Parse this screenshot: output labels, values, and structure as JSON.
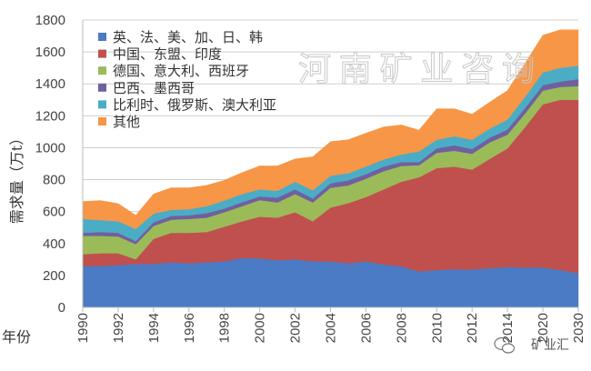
{
  "chart_data": {
    "type": "area",
    "stacked": true,
    "title": "",
    "xlabel": "年份",
    "ylabel": "需求量（万t）",
    "ylim": [
      0,
      1800
    ],
    "yticks": [
      0,
      200,
      400,
      600,
      800,
      1000,
      1200,
      1400,
      1600,
      1800
    ],
    "grid": true,
    "legend_position": "top-left",
    "categories": [
      "1990",
      "1991",
      "1992",
      "1993",
      "1994",
      "1995",
      "1996",
      "1997",
      "1998",
      "1999",
      "2000",
      "2001",
      "2002",
      "2003",
      "2004",
      "2005",
      "2006",
      "2007",
      "2008",
      "2009",
      "2010",
      "2011",
      "2012",
      "2013",
      "2014",
      "",
      "2020",
      "",
      "2030"
    ],
    "series": [
      {
        "name": "英、法、美、加、日、韩",
        "color": "#4a7bc4",
        "values": [
          259,
          259,
          265,
          272,
          272,
          282,
          276,
          282,
          288,
          310,
          307,
          295,
          301,
          288,
          288,
          276,
          288,
          269,
          257,
          225,
          234,
          238,
          238,
          246,
          253,
          250,
          250,
          234,
          215
        ]
      },
      {
        "name": "中国、东盟、印度",
        "color": "#c0504d",
        "values": [
          74,
          80,
          74,
          29,
          157,
          185,
          191,
          190,
          217,
          229,
          261,
          267,
          295,
          251,
          337,
          377,
          403,
          470,
          530,
          590,
          638,
          644,
          625,
          684,
          743,
          880,
          1022,
          1067,
          1086
        ]
      },
      {
        "name": "德国、意大利、西班牙",
        "color": "#9bbb59",
        "values": [
          115,
          109,
          105,
          95,
          81,
          82,
          87,
          90,
          91,
          95,
          104,
          95,
          114,
          118,
          124,
          111,
          115,
          114,
          99,
          76,
          96,
          99,
          99,
          104,
          86,
          85,
          86,
          80,
          85
        ]
      },
      {
        "name": "巴西、墨西哥",
        "color": "#7060a0",
        "values": [
          19,
          24,
          23,
          19,
          23,
          24,
          23,
          28,
          23,
          25,
          23,
          31,
          29,
          25,
          28,
          32,
          28,
          29,
          24,
          19,
          28,
          34,
          30,
          29,
          32,
          35,
          34,
          34,
          44
        ]
      },
      {
        "name": "比利时、俄罗斯、澳大利亚",
        "color": "#4bacc6",
        "values": [
          87,
          75,
          72,
          76,
          54,
          38,
          38,
          44,
          50,
          51,
          44,
          42,
          48,
          51,
          48,
          44,
          48,
          44,
          48,
          67,
          54,
          57,
          58,
          57,
          63,
          70,
          80,
          86,
          84
        ]
      },
      {
        "name": "其他",
        "color": "#f79646",
        "values": [
          109,
          122,
          111,
          86,
          123,
          138,
          134,
          130,
          127,
          134,
          147,
          156,
          143,
          210,
          213,
          210,
          209,
          204,
          185,
          133,
          194,
          172,
          160,
          166,
          181,
          210,
          233,
          238,
          225
        ]
      }
    ]
  },
  "watermark": "河南矿业咨询",
  "logo": {
    "text": "矿业汇",
    "icon": "wechat-icon"
  }
}
